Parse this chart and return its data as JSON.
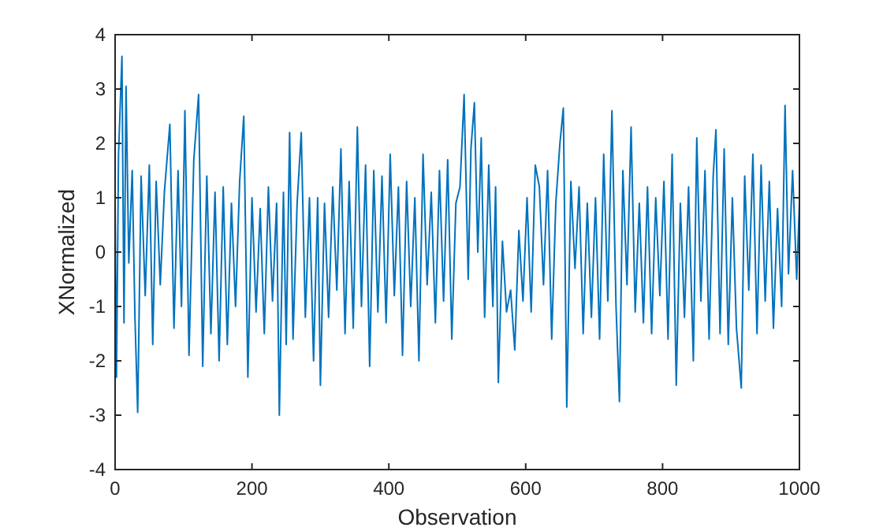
{
  "chart_data": {
    "type": "line",
    "xlabel": "Observation",
    "ylabel": "XNormalized",
    "xlim": [
      0,
      1000
    ],
    "xticks": [
      0,
      200,
      400,
      600,
      800,
      1000
    ],
    "ylim": [
      -4,
      4
    ],
    "yticks": [
      -4,
      -3,
      -2,
      -1,
      0,
      1,
      2,
      3,
      4
    ],
    "marker": "none",
    "line_style": "solid",
    "x": [
      0,
      2,
      5,
      10,
      13,
      16,
      20,
      25,
      29,
      33,
      38,
      44,
      50,
      55,
      60,
      66,
      72,
      80,
      86,
      92,
      97,
      102,
      108,
      115,
      122,
      128,
      134,
      140,
      146,
      152,
      158,
      164,
      170,
      176,
      182,
      188,
      194,
      200,
      206,
      212,
      218,
      224,
      230,
      236,
      240,
      246,
      250,
      255,
      260,
      266,
      272,
      278,
      284,
      290,
      296,
      300,
      306,
      312,
      318,
      324,
      330,
      336,
      342,
      348,
      354,
      360,
      366,
      372,
      378,
      384,
      390,
      396,
      402,
      408,
      414,
      420,
      426,
      432,
      438,
      444,
      450,
      456,
      462,
      468,
      474,
      480,
      486,
      492,
      498,
      504,
      510,
      516,
      520,
      525,
      530,
      535,
      540,
      546,
      552,
      556,
      560,
      566,
      572,
      578,
      584,
      590,
      596,
      602,
      608,
      614,
      620,
      626,
      632,
      638,
      644,
      650,
      655,
      660,
      666,
      672,
      678,
      684,
      690,
      696,
      702,
      708,
      714,
      720,
      726,
      732,
      737,
      742,
      748,
      754,
      760,
      766,
      772,
      778,
      784,
      790,
      796,
      802,
      808,
      814,
      820,
      826,
      832,
      838,
      845,
      850,
      856,
      862,
      868,
      874,
      878,
      884,
      890,
      896,
      902,
      908,
      915,
      920,
      926,
      932,
      938,
      944,
      950,
      956,
      962,
      968,
      974,
      979,
      984,
      990,
      996,
      1000
    ],
    "series": [
      {
        "color": "#0072bd",
        "values": [
          0.8,
          -2.3,
          1.8,
          3.6,
          -1.3,
          3.05,
          -0.2,
          1.5,
          -1.2,
          -2.95,
          1.4,
          -0.8,
          1.6,
          -1.7,
          1.3,
          -0.6,
          1.1,
          2.35,
          -1.4,
          1.5,
          -1.0,
          2.6,
          -1.9,
          1.7,
          2.9,
          -2.1,
          1.4,
          -1.5,
          1.1,
          -2.0,
          1.2,
          -1.7,
          0.9,
          -1.0,
          1.3,
          2.5,
          -2.3,
          1.0,
          -1.1,
          0.8,
          -1.5,
          1.2,
          -0.9,
          0.9,
          -3.0,
          1.1,
          -1.7,
          2.2,
          -1.6,
          0.9,
          2.2,
          -1.2,
          1.0,
          -2.0,
          1.0,
          -2.45,
          0.9,
          -1.2,
          1.2,
          -0.7,
          1.9,
          -1.5,
          1.3,
          -1.4,
          2.3,
          -1.0,
          1.6,
          -2.1,
          1.5,
          -1.1,
          1.4,
          -1.3,
          1.8,
          -0.8,
          1.2,
          -1.9,
          1.3,
          -1.0,
          1.0,
          -2.0,
          1.8,
          -0.6,
          1.1,
          -1.3,
          1.5,
          -0.9,
          1.7,
          -1.6,
          0.9,
          1.2,
          2.9,
          -0.5,
          1.9,
          2.75,
          0.0,
          2.1,
          -1.2,
          1.6,
          -1.0,
          1.2,
          -2.4,
          0.2,
          -1.1,
          -0.7,
          -1.8,
          0.4,
          -0.9,
          1.0,
          -1.1,
          1.6,
          1.2,
          -0.6,
          1.5,
          -1.6,
          0.9,
          2.0,
          2.65,
          -2.85,
          1.3,
          -0.3,
          1.2,
          -1.5,
          0.9,
          -1.2,
          1.0,
          -1.6,
          1.8,
          -0.9,
          2.6,
          -1.0,
          -2.75,
          1.5,
          -0.6,
          2.3,
          -1.1,
          0.9,
          -1.3,
          1.2,
          -1.5,
          1.0,
          -0.8,
          1.3,
          -1.6,
          1.8,
          -2.45,
          0.9,
          -1.2,
          1.2,
          -2.0,
          2.1,
          -0.9,
          1.5,
          -1.6,
          1.4,
          2.25,
          -1.5,
          1.9,
          -1.7,
          1.0,
          -1.4,
          -2.5,
          1.4,
          -0.7,
          1.8,
          -1.5,
          1.6,
          -0.9,
          1.3,
          -1.4,
          0.8,
          -1.0,
          2.7,
          -0.4,
          1.5,
          -0.5,
          0.9
        ]
      }
    ]
  }
}
